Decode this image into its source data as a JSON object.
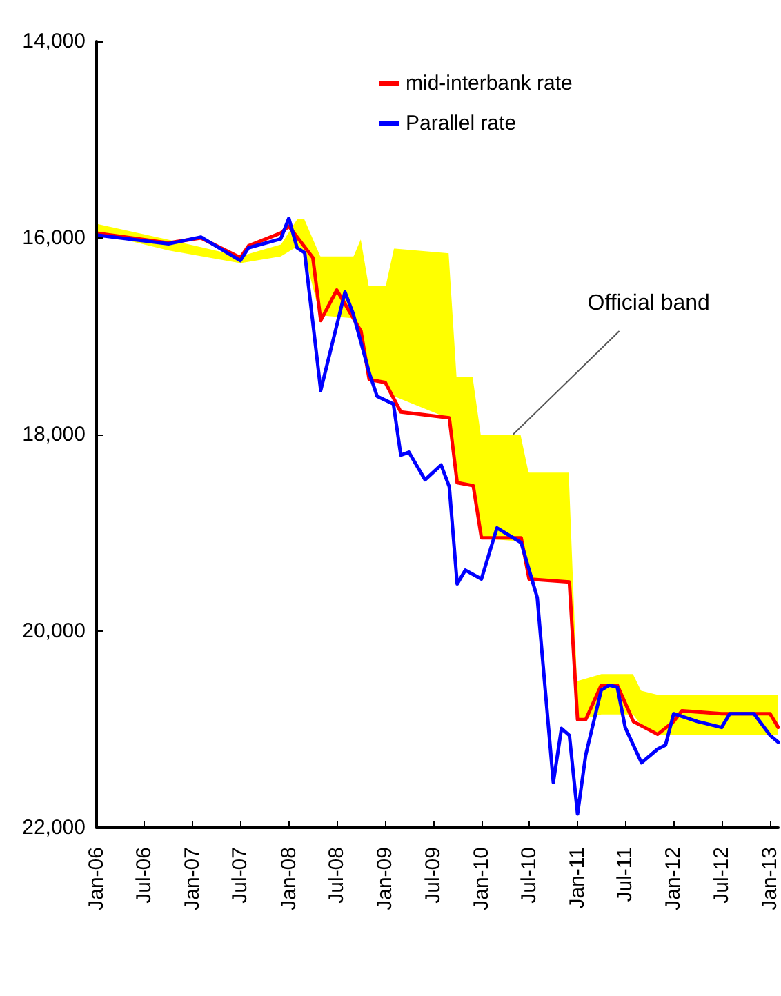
{
  "chart_data": {
    "type": "line",
    "legend": "top right",
    "grid": false,
    "line_style": "solid",
    "marker": "none",
    "xlim": [
      "2006-01",
      "2013-02"
    ],
    "xticks": [
      {
        "value": "2006-01",
        "label": "Jan-06"
      },
      {
        "value": "2006-07",
        "label": "Jul-06"
      },
      {
        "value": "2007-01",
        "label": "Jan-07"
      },
      {
        "value": "2007-07",
        "label": "Jul-07"
      },
      {
        "value": "2008-01",
        "label": "Jan-08"
      },
      {
        "value": "2008-07",
        "label": "Jul-08"
      },
      {
        "value": "2009-01",
        "label": "Jan-09"
      },
      {
        "value": "2009-07",
        "label": "Jul-09"
      },
      {
        "value": "2010-01",
        "label": "Jan-10"
      },
      {
        "value": "2010-07",
        "label": "Jul-10"
      },
      {
        "value": "2011-01",
        "label": "Jan-11"
      },
      {
        "value": "2011-07",
        "label": "Jul-11"
      },
      {
        "value": "2012-01",
        "label": "Jan-12"
      },
      {
        "value": "2012-07",
        "label": "Jul-12"
      },
      {
        "value": "2013-01",
        "label": "Jan-13"
      }
    ],
    "ylim": [
      22000,
      14000
    ],
    "yticks": [
      {
        "value": 14000,
        "label": "14,000"
      },
      {
        "value": 16000,
        "label": "16,000"
      },
      {
        "value": 18000,
        "label": "18,000"
      },
      {
        "value": 20000,
        "label": "20,000"
      },
      {
        "value": 22000,
        "label": "22,000"
      }
    ],
    "annotations": [
      {
        "text": "Official band",
        "x": "2010-05",
        "y": 18000
      }
    ],
    "series": [
      {
        "type": "area",
        "color": "#ffff00",
        "x": [
          "2006-01",
          "2006-10",
          "2007-07",
          "2007-12",
          "2008-02",
          "2008-03",
          "2008-05",
          "2008-09",
          "2008-10",
          "2008-11",
          "2009-01",
          "2009-02",
          "2009-09",
          "2009-10",
          "2009-12",
          "2010-01",
          "2010-06",
          "2010-07",
          "2010-12",
          "2011-01",
          "2011-04",
          "2011-08",
          "2011-09",
          "2011-11",
          "2013-02"
        ],
        "values": [
          15940,
          16120,
          16250,
          16180,
          16080,
          16150,
          16780,
          16810,
          16900,
          17440,
          17470,
          17600,
          17830,
          18490,
          18520,
          19050,
          19080,
          19470,
          19500,
          20900,
          20840,
          20840,
          20950,
          21050,
          21050
        ]
      },
      {
        "type": "area",
        "color": "#ffffff",
        "x": [
          "2006-01",
          "2006-10",
          "2007-07",
          "2007-12",
          "2008-02",
          "2008-03",
          "2008-05",
          "2008-09",
          "2008-10",
          "2008-11",
          "2009-01",
          "2009-02",
          "2009-09",
          "2009-10",
          "2009-12",
          "2010-01",
          "2010-06",
          "2010-07",
          "2010-12",
          "2011-01",
          "2011-04",
          "2011-08",
          "2011-09",
          "2011-11",
          "2013-02"
        ],
        "values": [
          15850,
          16010,
          16180,
          16060,
          15800,
          15800,
          16180,
          16180,
          15990,
          16480,
          16480,
          16100,
          16150,
          17410,
          17410,
          18000,
          18000,
          18380,
          18380,
          20500,
          20430,
          20430,
          20600,
          20640,
          20640
        ]
      },
      {
        "name": "mid-interbank rate",
        "color": "#ff0000",
        "x": [
          "2006-01",
          "2006-10",
          "2007-02",
          "2007-07",
          "2007-08",
          "2007-12",
          "2008-01",
          "2008-04",
          "2008-05",
          "2008-07",
          "2008-10",
          "2008-11",
          "2009-01",
          "2009-03",
          "2009-09",
          "2009-10",
          "2009-12",
          "2010-01",
          "2010-06",
          "2010-07",
          "2010-12",
          "2011-01",
          "2011-02",
          "2011-04",
          "2011-06",
          "2011-08",
          "2011-11",
          "2012-01",
          "2012-02",
          "2012-07",
          "2013-01",
          "2013-02"
        ],
        "values": [
          15950,
          16050,
          16000,
          16200,
          16080,
          15950,
          15880,
          16200,
          16840,
          16530,
          16950,
          17440,
          17470,
          17770,
          17830,
          18490,
          18520,
          19050,
          19050,
          19470,
          19500,
          20900,
          20900,
          20550,
          20550,
          20920,
          21050,
          20920,
          20810,
          20840,
          20840,
          20980
        ]
      },
      {
        "name": "Parallel rate",
        "color": "#0000ff",
        "x": [
          "2006-01",
          "2006-10",
          "2007-02",
          "2007-07",
          "2007-08",
          "2007-12",
          "2008-01",
          "2008-02",
          "2008-03",
          "2008-05",
          "2008-08",
          "2008-09",
          "2008-11",
          "2008-12",
          "2009-02",
          "2009-03",
          "2009-04",
          "2009-06",
          "2009-08",
          "2009-09",
          "2009-10",
          "2009-11",
          "2010-01",
          "2010-03",
          "2010-06",
          "2010-08",
          "2010-10",
          "2010-11",
          "2010-12",
          "2011-01",
          "2011-02",
          "2011-04",
          "2011-05",
          "2011-06",
          "2011-07",
          "2011-09",
          "2011-11",
          "2011-12",
          "2012-01",
          "2012-04",
          "2012-07",
          "2012-08",
          "2012-11",
          "2013-01",
          "2013-02"
        ],
        "values": [
          15970,
          16060,
          15990,
          16230,
          16100,
          16010,
          15800,
          16100,
          16150,
          17550,
          16550,
          16770,
          17370,
          17610,
          17690,
          18210,
          18180,
          18460,
          18310,
          18530,
          19520,
          19380,
          19470,
          18950,
          19100,
          19660,
          21540,
          20990,
          21060,
          21860,
          21260,
          20600,
          20550,
          20570,
          20980,
          21340,
          21200,
          21160,
          20840,
          20920,
          20980,
          20840,
          20840,
          21060,
          21130
        ]
      }
    ]
  }
}
